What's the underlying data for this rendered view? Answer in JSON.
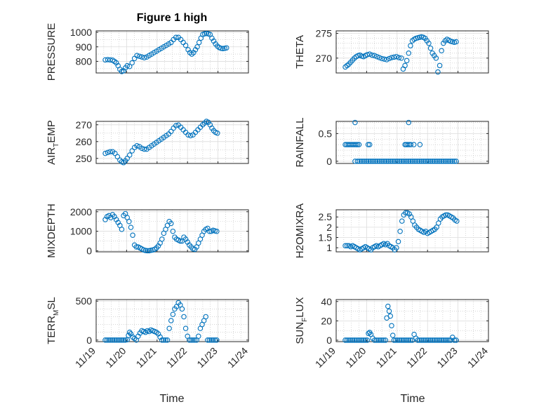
{
  "figure_title": "Figure 1 high",
  "x_axis_label": "Time",
  "colors": {
    "marker": "#0072BD",
    "axis": "#262626",
    "grid": "#bdbdbd"
  },
  "chart_data": [
    {
      "id": "pressure",
      "type": "scatter",
      "grid": true,
      "title": "Figure 1 high",
      "ylabel": "PRESSURE",
      "ylim": [
        720,
        1010
      ],
      "yticks": [
        800,
        900,
        1000
      ],
      "yminor": [
        750,
        850,
        950
      ],
      "xlim": [
        "11/19",
        "11/24"
      ],
      "xticks": [],
      "x": [
        0.3,
        0.38,
        0.46,
        0.54,
        0.6,
        0.66,
        0.72,
        0.78,
        0.84,
        0.9,
        0.96,
        1.02,
        1.1,
        1.18,
        1.26,
        1.34,
        1.42,
        1.5,
        1.58,
        1.66,
        1.74,
        1.82,
        1.9,
        1.98,
        2.06,
        2.14,
        2.22,
        2.3,
        2.38,
        2.46,
        2.54,
        2.62,
        2.7,
        2.78,
        2.86,
        2.94,
        3.02,
        3.08,
        3.14,
        3.2,
        3.26,
        3.32,
        3.38,
        3.44,
        3.5,
        3.56,
        3.62,
        3.68,
        3.74,
        3.8,
        3.86,
        3.92,
        3.98,
        4.04,
        4.1,
        4.16,
        4.22,
        4.28
      ],
      "y": [
        810,
        812,
        810,
        808,
        800,
        790,
        770,
        745,
        730,
        735,
        755,
        770,
        765,
        790,
        820,
        840,
        835,
        830,
        825,
        830,
        840,
        850,
        860,
        870,
        880,
        890,
        900,
        910,
        920,
        930,
        950,
        965,
        965,
        950,
        930,
        910,
        880,
        860,
        850,
        860,
        880,
        900,
        930,
        960,
        985,
        990,
        992,
        990,
        985,
        960,
        940,
        920,
        905,
        895,
        890,
        888,
        890,
        893
      ]
    },
    {
      "id": "theta",
      "type": "scatter",
      "grid": true,
      "ylabel": "THETA",
      "ylim": [
        267,
        275.5
      ],
      "yticks": [
        270,
        275
      ],
      "yminor": [
        268,
        269,
        271,
        272,
        273,
        274
      ],
      "xlim": [
        "11/19",
        "11/24"
      ],
      "xticks": [],
      "x": [
        0.3,
        0.36,
        0.42,
        0.48,
        0.54,
        0.6,
        0.66,
        0.72,
        0.78,
        0.84,
        0.9,
        0.96,
        1.02,
        1.1,
        1.18,
        1.26,
        1.34,
        1.42,
        1.5,
        1.58,
        1.66,
        1.74,
        1.82,
        1.9,
        1.98,
        2.06,
        2.14,
        2.2,
        2.26,
        2.32,
        2.38,
        2.44,
        2.5,
        2.56,
        2.62,
        2.68,
        2.74,
        2.8,
        2.86,
        2.92,
        2.98,
        3.04,
        3.1,
        3.16,
        3.22,
        3.28,
        3.34,
        3.4,
        3.46,
        3.52,
        3.58,
        3.64,
        3.7,
        3.76,
        3.82,
        3.88,
        3.94
      ],
      "y": [
        268.2,
        268.5,
        268.8,
        269.2,
        269.6,
        270.0,
        270.3,
        270.5,
        270.6,
        270.4,
        270.3,
        270.5,
        270.7,
        270.8,
        270.6,
        270.5,
        270.3,
        270.1,
        269.9,
        269.8,
        269.7,
        269.9,
        270.1,
        270.2,
        270.3,
        270.1,
        270.0,
        267.8,
        268.5,
        269.5,
        271.0,
        272.5,
        273.5,
        273.8,
        274.0,
        274.1,
        274.2,
        274.3,
        274.2,
        274.0,
        273.5,
        273.0,
        272.0,
        271.0,
        270.5,
        270.0,
        267.2,
        268.5,
        271.5,
        273.0,
        273.5,
        273.8,
        273.6,
        273.4,
        273.3,
        273.2,
        273.3
      ]
    },
    {
      "id": "air_temp",
      "type": "scatter",
      "grid": true,
      "ylabel": "AIR_TEMP",
      "ylim": [
        247,
        272
      ],
      "yticks": [
        250,
        260,
        270
      ],
      "yminor": [
        255,
        265
      ],
      "xlim": [
        "11/19",
        "11/24"
      ],
      "xticks": [],
      "x": [
        0.3,
        0.38,
        0.46,
        0.54,
        0.62,
        0.7,
        0.78,
        0.84,
        0.9,
        0.96,
        1.02,
        1.1,
        1.18,
        1.26,
        1.34,
        1.42,
        1.5,
        1.58,
        1.66,
        1.74,
        1.82,
        1.9,
        1.98,
        2.06,
        2.14,
        2.22,
        2.3,
        2.38,
        2.46,
        2.54,
        2.62,
        2.7,
        2.78,
        2.86,
        2.94,
        3.02,
        3.1,
        3.18,
        3.26,
        3.34,
        3.42,
        3.5,
        3.56,
        3.62,
        3.68,
        3.74,
        3.8,
        3.86,
        3.92,
        3.98
      ],
      "y": [
        253,
        253.5,
        254,
        254,
        253,
        251,
        249,
        248,
        247.5,
        248.5,
        250,
        252,
        254.5,
        256.5,
        257.5,
        257,
        256,
        255.5,
        255.5,
        256.5,
        257.5,
        258.5,
        259.5,
        260.5,
        261.5,
        262.5,
        263.5,
        264.5,
        266,
        268,
        269.5,
        269.8,
        268.5,
        267,
        265.5,
        264,
        263.5,
        264,
        265.5,
        267,
        268.5,
        270,
        271,
        272,
        271.5,
        270,
        268,
        266.5,
        265.5,
        265
      ]
    },
    {
      "id": "rainfall",
      "type": "scatter",
      "grid": true,
      "ylabel": "RAINFALL",
      "ylim": [
        -0.04,
        0.72
      ],
      "yticks": [
        0,
        0.5
      ],
      "yminor": [
        0.1,
        0.2,
        0.3,
        0.4,
        0.6,
        0.7
      ],
      "xlim": [
        "11/19",
        "11/24"
      ],
      "xticks": [],
      "x": [
        0.3,
        0.35,
        0.4,
        0.45,
        0.5,
        0.55,
        0.6,
        0.65,
        0.7,
        0.75,
        1.05,
        1.1,
        2.26,
        2.3,
        2.35,
        2.4,
        2.45,
        2.55,
        2.75,
        0.62,
        2.38,
        0.62,
        0.7,
        0.76,
        0.82,
        0.88,
        0.94,
        1.0,
        1.06,
        1.12,
        1.18,
        1.24,
        1.3,
        1.36,
        1.42,
        1.48,
        1.54,
        1.6,
        1.66,
        1.72,
        1.78,
        1.84,
        1.9,
        1.96,
        2.02,
        2.08,
        2.14,
        2.2,
        2.26,
        2.32,
        2.38,
        2.44,
        2.5,
        2.56,
        2.62,
        2.68,
        2.74,
        2.8,
        2.86,
        2.92,
        2.98,
        3.04,
        3.1,
        3.16,
        3.22,
        3.28,
        3.34,
        3.4,
        3.46,
        3.52,
        3.58,
        3.64,
        3.7,
        3.76,
        3.82,
        3.88,
        3.94
      ],
      "y": [
        0.3,
        0.3,
        0.3,
        0.3,
        0.3,
        0.3,
        0.3,
        0.3,
        0.3,
        0.3,
        0.3,
        0.3,
        0.3,
        0.3,
        0.3,
        0.3,
        0.3,
        0.3,
        0.3,
        0.7,
        0.7,
        0,
        0,
        0,
        0,
        0,
        0,
        0,
        0,
        0,
        0,
        0,
        0,
        0,
        0,
        0,
        0,
        0,
        0,
        0,
        0,
        0,
        0,
        0,
        0,
        0,
        0,
        0,
        0,
        0,
        0,
        0,
        0,
        0,
        0,
        0,
        0,
        0,
        0,
        0,
        0,
        0,
        0,
        0,
        0,
        0,
        0,
        0,
        0,
        0,
        0,
        0,
        0,
        0,
        0,
        0,
        0
      ]
    },
    {
      "id": "mixdepth",
      "type": "scatter",
      "grid": true,
      "ylabel": "MIXDEPTH",
      "ylim": [
        -50,
        2100
      ],
      "yticks": [
        0,
        1000,
        2000
      ],
      "yminor": [
        500,
        1500
      ],
      "xlim": [
        "11/19",
        "11/24"
      ],
      "xticks": [],
      "x": [
        0.3,
        0.36,
        0.42,
        0.48,
        0.54,
        0.6,
        0.66,
        0.72,
        0.78,
        0.84,
        0.9,
        0.96,
        1.02,
        1.08,
        1.14,
        1.2,
        1.26,
        1.32,
        1.38,
        1.44,
        1.5,
        1.56,
        1.62,
        1.68,
        1.74,
        1.8,
        1.86,
        1.92,
        1.98,
        2.04,
        2.1,
        2.16,
        2.22,
        2.28,
        2.34,
        2.4,
        2.46,
        2.52,
        2.58,
        2.64,
        2.7,
        2.76,
        2.82,
        2.88,
        2.94,
        3.0,
        3.06,
        3.12,
        3.18,
        3.24,
        3.3,
        3.36,
        3.42,
        3.48,
        3.54,
        3.6,
        3.66,
        3.72,
        3.78,
        3.84,
        3.9,
        3.96
      ],
      "y": [
        1600,
        1750,
        1800,
        1700,
        1850,
        1750,
        1600,
        1450,
        1300,
        1100,
        1800,
        1900,
        1700,
        1500,
        1200,
        800,
        300,
        200,
        200,
        150,
        100,
        50,
        20,
        10,
        10,
        30,
        50,
        80,
        150,
        250,
        400,
        600,
        900,
        1100,
        1300,
        1500,
        1400,
        1000,
        700,
        600,
        550,
        500,
        500,
        700,
        600,
        450,
        300,
        200,
        100,
        80,
        200,
        400,
        600,
        800,
        1000,
        1100,
        1150,
        1000,
        1000,
        1050,
        1020,
        1000
      ]
    },
    {
      "id": "h2omixra",
      "type": "scatter",
      "grid": true,
      "ylabel": "H2OMIXRA",
      "ylim": [
        0.8,
        2.85
      ],
      "yticks": [
        1,
        1.5,
        2,
        2.5
      ],
      "yminor": [],
      "xlim": [
        "11/19",
        "11/24"
      ],
      "xticks": [],
      "x": [
        0.3,
        0.36,
        0.42,
        0.48,
        0.54,
        0.6,
        0.66,
        0.72,
        0.78,
        0.84,
        0.9,
        0.96,
        1.02,
        1.08,
        1.14,
        1.2,
        1.26,
        1.32,
        1.38,
        1.44,
        1.5,
        1.56,
        1.62,
        1.68,
        1.74,
        1.8,
        1.86,
        1.92,
        1.98,
        2.04,
        2.1,
        2.16,
        2.22,
        2.28,
        2.34,
        2.4,
        2.46,
        2.52,
        2.58,
        2.64,
        2.7,
        2.76,
        2.82,
        2.88,
        2.94,
        3.0,
        3.06,
        3.12,
        3.18,
        3.24,
        3.3,
        3.36,
        3.42,
        3.48,
        3.54,
        3.6,
        3.66,
        3.72,
        3.78,
        3.84,
        3.9,
        3.96
      ],
      "y": [
        1.1,
        1.1,
        1.1,
        1.05,
        1.1,
        1.05,
        1.0,
        0.95,
        0.9,
        0.95,
        1.0,
        1.05,
        1.0,
        0.95,
        0.9,
        1.0,
        1.05,
        1.1,
        1.05,
        1.1,
        1.15,
        1.2,
        1.15,
        1.2,
        1.1,
        1.05,
        1.0,
        0.9,
        1.0,
        1.3,
        1.8,
        2.3,
        2.6,
        2.7,
        2.7,
        2.65,
        2.5,
        2.3,
        2.1,
        2.0,
        1.9,
        1.85,
        1.8,
        1.75,
        1.8,
        1.7,
        1.75,
        1.8,
        1.85,
        1.9,
        2.0,
        2.2,
        2.4,
        2.5,
        2.55,
        2.6,
        2.6,
        2.55,
        2.5,
        2.45,
        2.35,
        2.3
      ]
    },
    {
      "id": "terr_msl",
      "type": "scatter",
      "grid": true,
      "ylabel": "TERR_MSL",
      "ylim": [
        -20,
        520
      ],
      "yticks": [
        0,
        500
      ],
      "yminor": [
        100,
        200,
        300,
        400
      ],
      "xlim": [
        "11/19",
        "11/24"
      ],
      "xticks": [
        "11/19",
        "11/20",
        "11/21",
        "11/22",
        "11/23",
        "11/24"
      ],
      "xlabel": "Time",
      "x": [
        0.3,
        0.36,
        0.42,
        0.48,
        0.54,
        0.6,
        0.66,
        0.72,
        0.78,
        0.84,
        0.9,
        0.96,
        1.02,
        1.06,
        1.1,
        1.14,
        1.2,
        1.26,
        1.32,
        1.38,
        1.44,
        1.5,
        1.56,
        1.62,
        1.68,
        1.74,
        1.8,
        1.86,
        1.92,
        1.98,
        2.04,
        2.1,
        2.16,
        2.22,
        2.28,
        2.34,
        2.4,
        2.46,
        2.52,
        2.58,
        2.64,
        2.7,
        2.76,
        2.82,
        2.88,
        2.94,
        3.0,
        3.06,
        3.12,
        3.18,
        3.24,
        3.3,
        3.36,
        3.42,
        3.48,
        3.54,
        3.6,
        3.66,
        3.72,
        3.78,
        3.84,
        3.9,
        3.96
      ],
      "y": [
        0,
        0,
        0,
        0,
        0,
        0,
        0,
        0,
        0,
        0,
        0,
        0,
        5,
        60,
        100,
        80,
        40,
        20,
        0,
        50,
        90,
        120,
        110,
        100,
        120,
        110,
        130,
        120,
        110,
        100,
        80,
        40,
        0,
        0,
        0,
        0,
        150,
        250,
        330,
        400,
        430,
        480,
        450,
        400,
        300,
        150,
        50,
        0,
        0,
        0,
        0,
        0,
        50,
        150,
        200,
        250,
        300,
        0,
        0,
        0,
        0,
        0,
        0
      ]
    },
    {
      "id": "sun_flux",
      "type": "scatter",
      "grid": true,
      "ylabel": "SUN_FLUX",
      "ylim": [
        -1.5,
        42
      ],
      "yticks": [
        0,
        20,
        40
      ],
      "yminor": [
        10,
        30
      ],
      "xlim": [
        "11/19",
        "11/24"
      ],
      "xticks": [
        "11/19",
        "11/20",
        "11/21",
        "11/22",
        "11/23",
        "11/24"
      ],
      "xlabel": "Time",
      "x": [
        0.3,
        0.36,
        0.42,
        0.48,
        0.54,
        0.6,
        0.66,
        0.72,
        0.78,
        0.84,
        0.9,
        0.96,
        1.02,
        1.06,
        1.1,
        1.14,
        1.2,
        1.26,
        1.32,
        1.38,
        1.44,
        1.5,
        1.56,
        1.62,
        1.66,
        1.7,
        1.74,
        1.78,
        1.82,
        1.86,
        1.9,
        1.96,
        2.02,
        2.08,
        2.14,
        2.2,
        2.26,
        2.32,
        2.38,
        2.44,
        2.5,
        2.56,
        2.62,
        2.68,
        2.74,
        2.8,
        2.86,
        2.92,
        2.98,
        3.04,
        3.1,
        3.16,
        3.22,
        3.28,
        3.34,
        3.4,
        3.46,
        3.52,
        3.58,
        3.64,
        3.7,
        3.76,
        3.82,
        3.88,
        3.94
      ],
      "y": [
        0,
        0,
        0,
        0,
        0,
        0,
        0,
        0,
        0,
        0,
        0,
        0,
        0,
        7,
        8,
        6,
        2,
        0,
        0,
        0,
        0,
        0,
        0,
        0,
        23,
        35,
        30,
        25,
        15,
        5,
        0,
        0,
        0,
        0,
        0,
        0,
        0,
        0,
        0,
        0,
        0,
        6,
        2,
        0,
        0,
        0,
        0,
        0,
        0,
        0,
        0,
        0,
        0,
        0,
        0,
        0,
        0,
        0,
        0,
        0,
        0,
        0,
        3,
        0,
        0
      ]
    }
  ]
}
